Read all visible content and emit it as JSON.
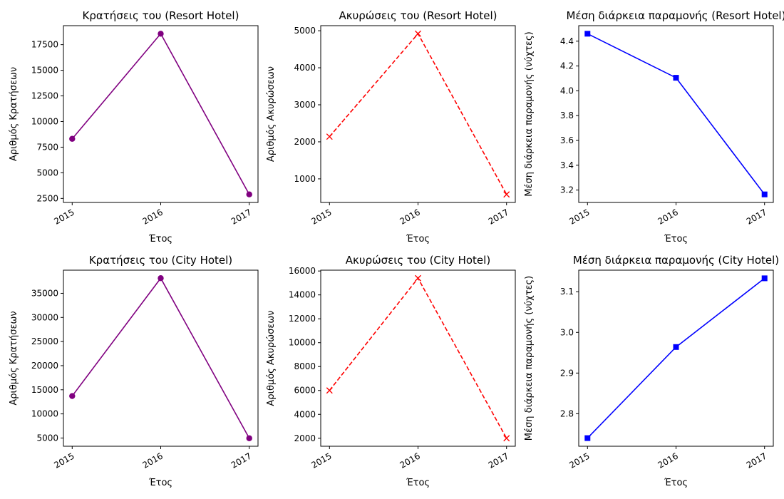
{
  "chart_data": [
    {
      "type": "line",
      "title": "Κρατήσεις του (Resort Hotel)",
      "xlabel": "Έτος",
      "ylabel": "Αριθμός Κρατήσεων",
      "x": [
        "2015",
        "2016",
        "2017"
      ],
      "values": [
        8314,
        18567,
        2891
      ],
      "ylim": [
        2106,
        19352
      ],
      "yticks": [
        2500,
        5000,
        7500,
        10000,
        12500,
        15000,
        17500
      ],
      "ytick_labels": [
        "2500",
        "5000",
        "7500",
        "10000",
        "12500",
        "15000",
        "17500"
      ],
      "color": "#800080",
      "dash": false,
      "marker": "circle",
      "grid": false
    },
    {
      "type": "line",
      "title": "Ακυρώσεις του (Resort Hotel)",
      "xlabel": "Έτος",
      "ylabel": "Αριθμός Ακυρώσεων",
      "x": [
        "2015",
        "2016",
        "2017"
      ],
      "values": [
        2140,
        4920,
        580
      ],
      "ylim": [
        363,
        5137
      ],
      "yticks": [
        1000,
        2000,
        3000,
        4000,
        5000
      ],
      "ytick_labels": [
        "1000",
        "2000",
        "3000",
        "4000",
        "5000"
      ],
      "color": "#ff0000",
      "dash": true,
      "marker": "x",
      "grid": false
    },
    {
      "type": "line",
      "title": "Μέση διάρκεια παραμονής (Resort Hotel)",
      "xlabel": "Έτος",
      "ylabel": "Μέση διάρκεια παραμονής (νύχτες)",
      "x": [
        "2015",
        "2016",
        "2017"
      ],
      "values": [
        4.46,
        4.105,
        3.165
      ],
      "ylim": [
        3.1,
        4.525
      ],
      "yticks": [
        3.2,
        3.4,
        3.6,
        3.8,
        4.0,
        4.2,
        4.4
      ],
      "ytick_labels": [
        "3.2",
        "3.4",
        "3.6",
        "3.8",
        "4.0",
        "4.2",
        "4.4"
      ],
      "color": "#0000ff",
      "dash": false,
      "marker": "square",
      "grid": false
    },
    {
      "type": "line",
      "title": "Κρατήσεις του (City Hotel)",
      "xlabel": "Έτος",
      "ylabel": "Αριθμός Κρατήσεων",
      "x": [
        "2015",
        "2016",
        "2017"
      ],
      "values": [
        13700,
        38140,
        4950
      ],
      "ylim": [
        3291,
        39800
      ],
      "yticks": [
        5000,
        10000,
        15000,
        20000,
        25000,
        30000,
        35000
      ],
      "ytick_labels": [
        "5000",
        "10000",
        "15000",
        "20000",
        "25000",
        "30000",
        "35000"
      ],
      "color": "#800080",
      "dash": false,
      "marker": "circle",
      "grid": false
    },
    {
      "type": "line",
      "title": "Ακυρώσεις του (City Hotel)",
      "xlabel": "Έτος",
      "ylabel": "Αριθμός Ακυρώσεων",
      "x": [
        "2015",
        "2016",
        "2017"
      ],
      "values": [
        6000,
        15400,
        2000
      ],
      "ylim": [
        1330,
        16070
      ],
      "yticks": [
        2000,
        4000,
        6000,
        8000,
        10000,
        12000,
        14000,
        16000
      ],
      "ytick_labels": [
        "2000",
        "4000",
        "6000",
        "8000",
        "10000",
        "12000",
        "14000",
        "16000"
      ],
      "color": "#ff0000",
      "dash": true,
      "marker": "x",
      "grid": false
    },
    {
      "type": "line",
      "title": "Μέση διάρκεια παραμονής (City Hotel)",
      "xlabel": "Έτος",
      "ylabel": "Μέση διάρκεια παραμονής (νύχτες)",
      "x": [
        "2015",
        "2016",
        "2017"
      ],
      "values": [
        2.74,
        2.964,
        3.133
      ],
      "ylim": [
        2.72,
        3.153
      ],
      "yticks": [
        2.8,
        2.9,
        3.0,
        3.1
      ],
      "ytick_labels": [
        "2.8",
        "2.9",
        "3.0",
        "3.1"
      ],
      "color": "#0000ff",
      "dash": false,
      "marker": "square",
      "grid": false
    }
  ]
}
